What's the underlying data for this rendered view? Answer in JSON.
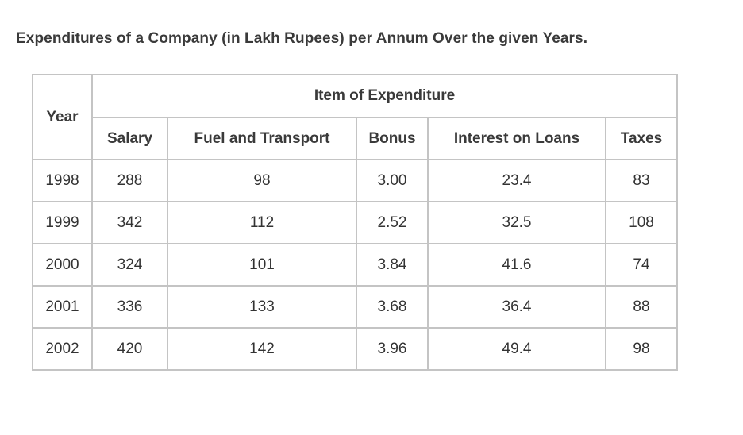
{
  "title": "Expenditures of a Company (in Lakh Rupees) per Annum Over the given Years.",
  "chart_data": {
    "type": "table",
    "title": "Expenditures of a Company (in Lakh Rupees) per Annum Over the given Years.",
    "row_header": "Year",
    "group_header": "Item of Expenditure",
    "columns": [
      "Salary",
      "Fuel and Transport",
      "Bonus",
      "Interest on Loans",
      "Taxes"
    ],
    "rows": [
      {
        "year": "1998",
        "values": [
          "288",
          "98",
          "3.00",
          "23.4",
          "83"
        ]
      },
      {
        "year": "1999",
        "values": [
          "342",
          "112",
          "2.52",
          "32.5",
          "108"
        ]
      },
      {
        "year": "2000",
        "values": [
          "324",
          "101",
          "3.84",
          "41.6",
          "74"
        ]
      },
      {
        "year": "2001",
        "values": [
          "336",
          "133",
          "3.68",
          "36.4",
          "88"
        ]
      },
      {
        "year": "2002",
        "values": [
          "420",
          "142",
          "3.96",
          "49.4",
          "98"
        ]
      }
    ]
  }
}
